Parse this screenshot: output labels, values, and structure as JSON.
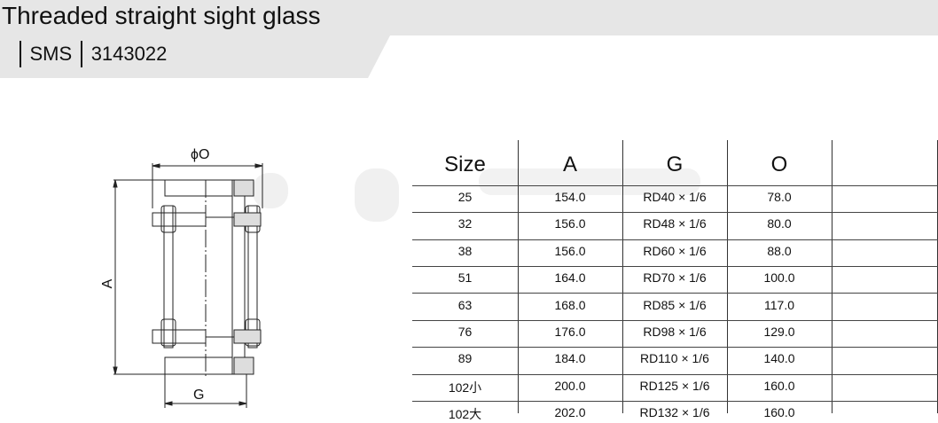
{
  "header": {
    "title": "Threaded straight sight glass",
    "standard": "SMS",
    "code": "3143022"
  },
  "drawing": {
    "dim_diameter": "ϕO",
    "dim_length": "A",
    "dim_thread": "G"
  },
  "table": {
    "columns": [
      "Size",
      "A",
      "G",
      "O",
      ""
    ],
    "rows": [
      [
        "25",
        "154.0",
        "RD40 × 1/6",
        "78.0",
        ""
      ],
      [
        "32",
        "156.0",
        "RD48 × 1/6",
        "80.0",
        ""
      ],
      [
        "38",
        "156.0",
        "RD60 × 1/6",
        "88.0",
        ""
      ],
      [
        "51",
        "164.0",
        "RD70 × 1/6",
        "100.0",
        ""
      ],
      [
        "63",
        "168.0",
        "RD85 × 1/6",
        "117.0",
        ""
      ],
      [
        "76",
        "176.0",
        "RD98 × 1/6",
        "129.0",
        ""
      ],
      [
        "89",
        "184.0",
        "RD110 × 1/6",
        "140.0",
        ""
      ],
      [
        "102小",
        "200.0",
        "RD125 × 1/6",
        "160.0",
        ""
      ],
      [
        "102大",
        "202.0",
        "RD132 × 1/6",
        "160.0",
        ""
      ]
    ]
  }
}
